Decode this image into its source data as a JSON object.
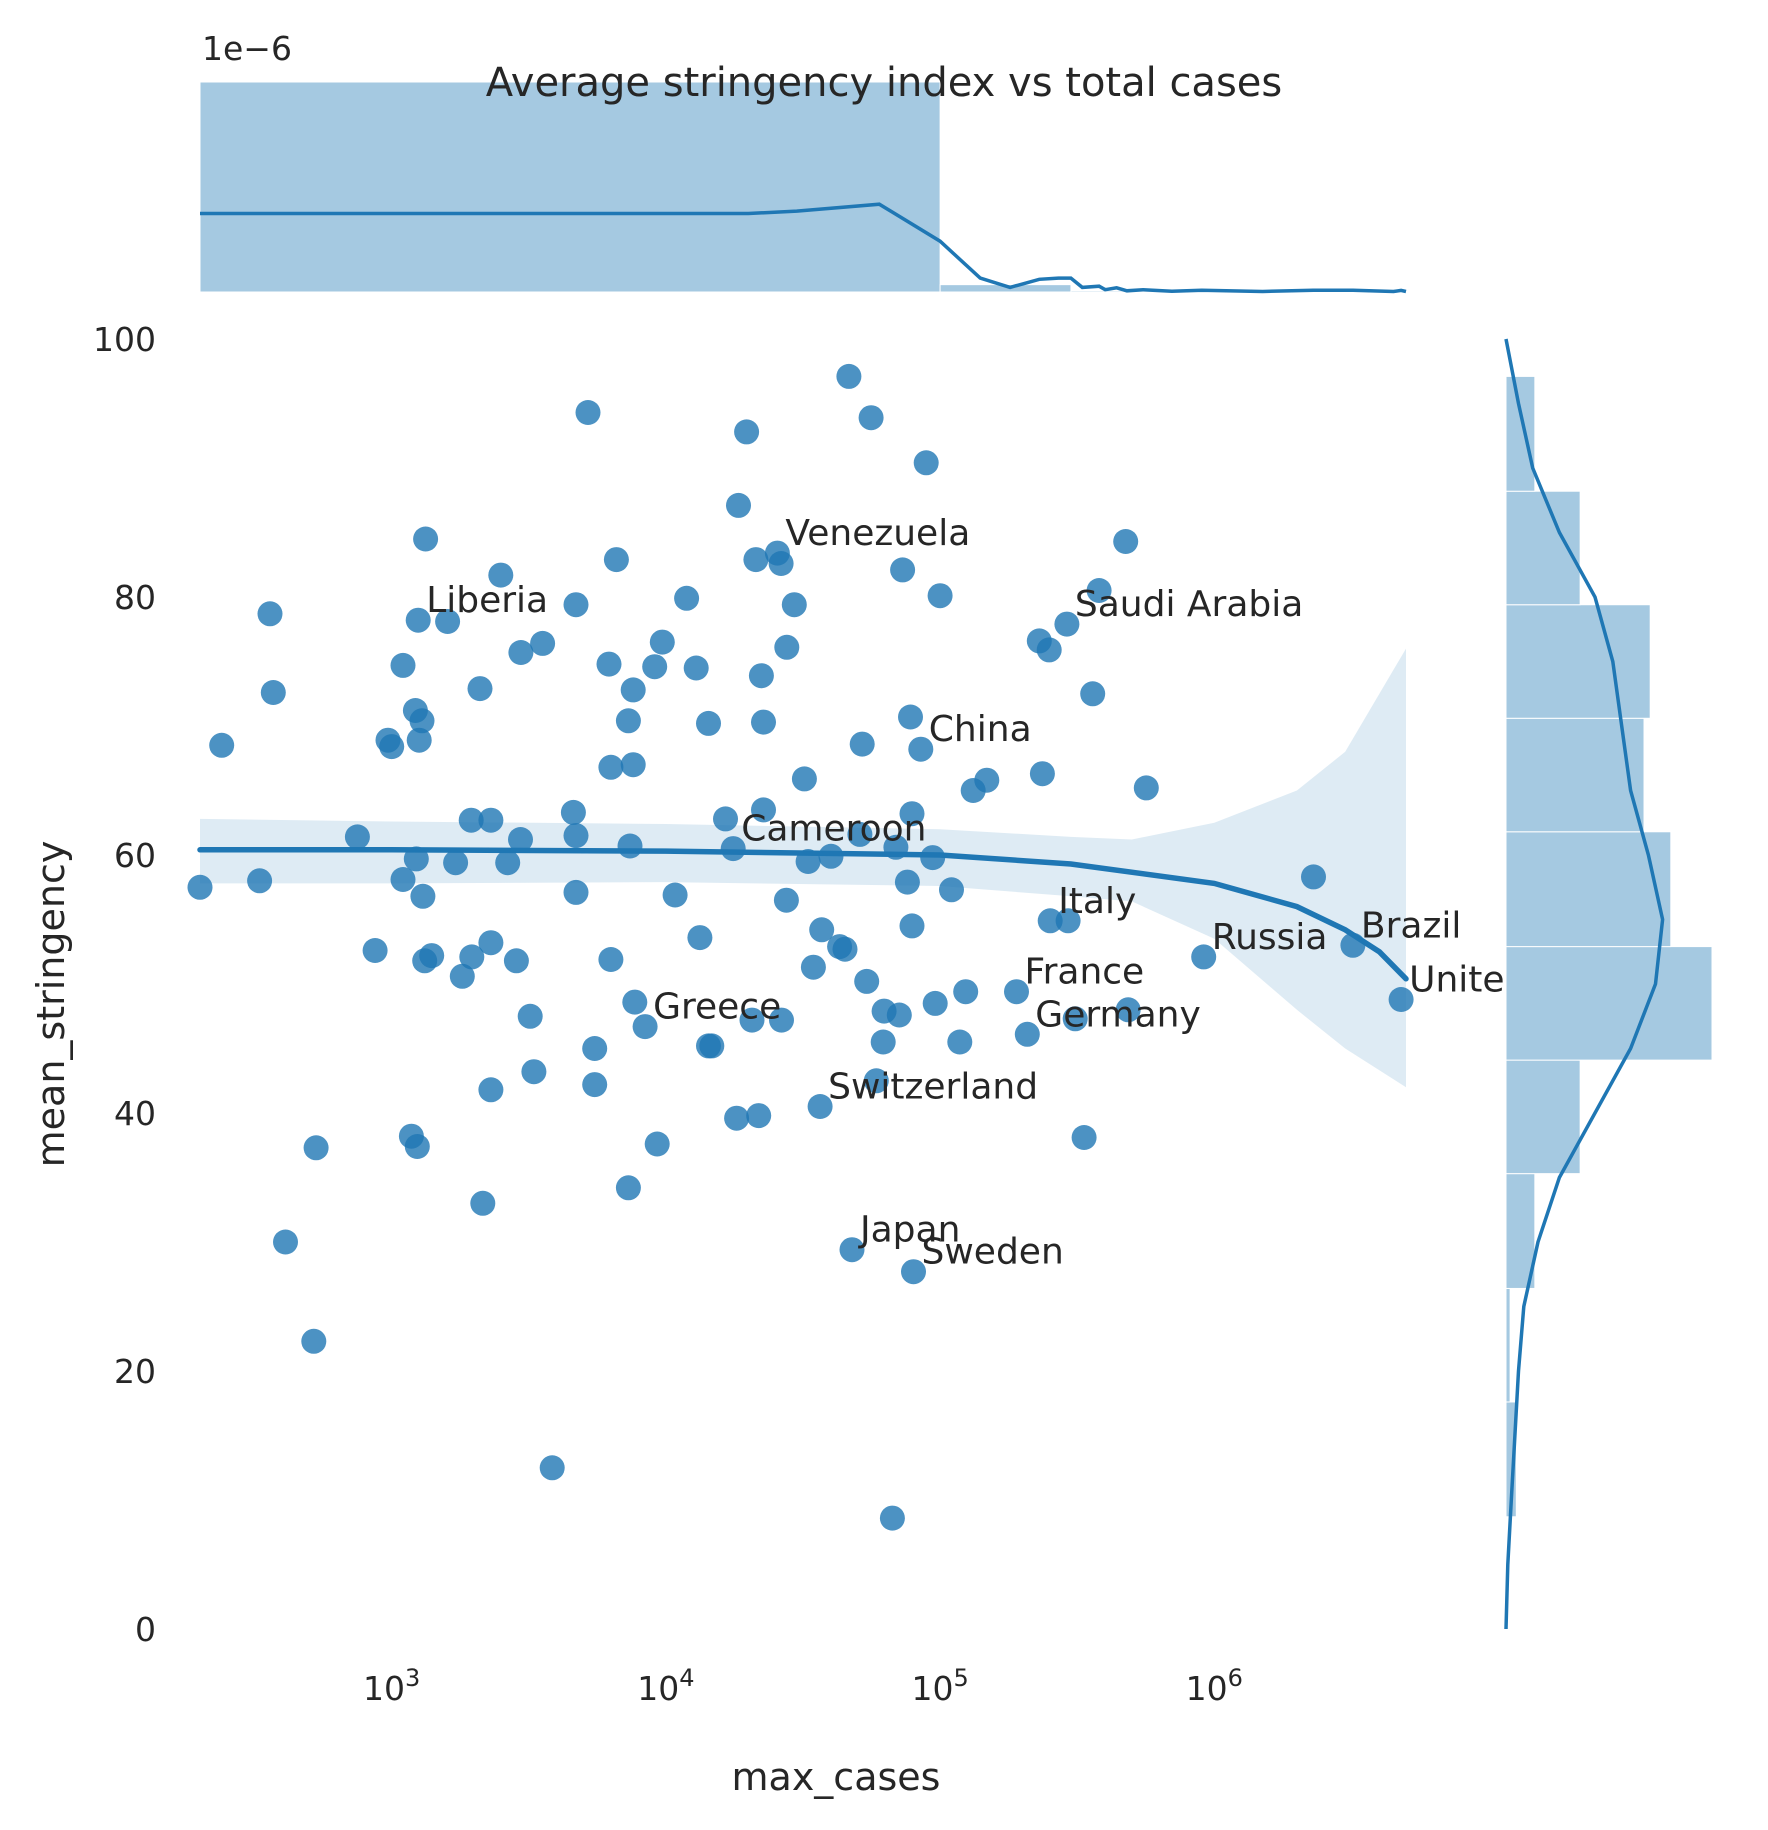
{
  "chart_data": {
    "type": "scatter",
    "title": "Average stringency index vs total cases",
    "xlabel": "max_cases",
    "ylabel": "mean_stringency",
    "xscale": "log",
    "xlim": [
      200,
      5000000
    ],
    "ylim": [
      0,
      100
    ],
    "x_ticks": [
      {
        "value": 1000,
        "base": "10",
        "exp": "3"
      },
      {
        "value": 10000,
        "base": "10",
        "exp": "4"
      },
      {
        "value": 100000,
        "base": "10",
        "exp": "5"
      },
      {
        "value": 1000000,
        "base": "10",
        "exp": "6"
      }
    ],
    "y_ticks": [
      "0",
      "20",
      "40",
      "60",
      "80",
      "100"
    ],
    "top_marginal_offset_label": "1e−6",
    "color": "#1f77b4",
    "points": [
      [
        200,
        57.5
      ],
      [
        240,
        68.5
      ],
      [
        370,
        72.6
      ],
      [
        330,
        58
      ],
      [
        360,
        78.7
      ],
      [
        410,
        30
      ],
      [
        520,
        22.3
      ],
      [
        530,
        37.3
      ],
      [
        750,
        61.4
      ],
      [
        870,
        52.6
      ],
      [
        970,
        68.9
      ],
      [
        1000,
        68.4
      ],
      [
        1100,
        74.7
      ],
      [
        1100,
        58.1
      ],
      [
        1180,
        38.2
      ],
      [
        1220,
        71.2
      ],
      [
        1230,
        59.7
      ],
      [
        1240,
        37.4
      ],
      [
        1250,
        78.2
      ],
      [
        1260,
        68.9
      ],
      [
        1290,
        70.4
      ],
      [
        1300,
        56.8
      ],
      [
        1320,
        51.8
      ],
      [
        1330,
        84.5
      ],
      [
        1400,
        52.2
      ],
      [
        1600,
        78.1
      ],
      [
        1710,
        59.4
      ],
      [
        1810,
        50.6
      ],
      [
        1950,
        62.7
      ],
      [
        1960,
        52.1
      ],
      [
        2100,
        72.9
      ],
      [
        2150,
        33
      ],
      [
        2300,
        62.7
      ],
      [
        2300,
        53.2
      ],
      [
        2300,
        41.8
      ],
      [
        2500,
        81.7
      ],
      [
        2650,
        59.4
      ],
      [
        2850,
        51.8
      ],
      [
        2950,
        61.2
      ],
      [
        2960,
        75.7
      ],
      [
        3200,
        47.5
      ],
      [
        3300,
        43.2
      ],
      [
        3550,
        76.4
      ],
      [
        3850,
        12.5
      ],
      [
        4600,
        63.3
      ],
      [
        4700,
        61.5
      ],
      [
        4700,
        57.1
      ],
      [
        4700,
        79.4
      ],
      [
        5200,
        94.3
      ],
      [
        5500,
        45
      ],
      [
        5500,
        42.2
      ],
      [
        6200,
        74.8
      ],
      [
        6300,
        66.8
      ],
      [
        6300,
        51.9
      ],
      [
        6600,
        82.9
      ],
      [
        7300,
        70.4
      ],
      [
        7300,
        34.2
      ],
      [
        7400,
        60.7
      ],
      [
        7600,
        72.8
      ],
      [
        7600,
        67
      ],
      [
        7700,
        48.6
      ],
      [
        8400,
        46.7
      ],
      [
        9100,
        74.6
      ],
      [
        9300,
        37.6
      ],
      [
        9700,
        76.5
      ],
      [
        10800,
        56.9
      ],
      [
        11900,
        79.9
      ],
      [
        12900,
        74.5
      ],
      [
        13300,
        53.6
      ],
      [
        14300,
        70.2
      ],
      [
        14300,
        45.2
      ],
      [
        14700,
        45.2
      ],
      [
        16500,
        62.8
      ],
      [
        17600,
        60.5
      ],
      [
        18100,
        39.6
      ],
      [
        18400,
        87.1
      ],
      [
        19700,
        92.8
      ],
      [
        20600,
        47.2
      ],
      [
        21300,
        82.9
      ],
      [
        21800,
        39.8
      ],
      [
        22300,
        73.9
      ],
      [
        22700,
        70.3
      ],
      [
        22700,
        63.5
      ],
      [
        25500,
        83.4
      ],
      [
        26300,
        82.6
      ],
      [
        26400,
        47.2
      ],
      [
        27500,
        56.5
      ],
      [
        27600,
        76.1
      ],
      [
        29400,
        79.4
      ],
      [
        32000,
        65.9
      ],
      [
        33000,
        59.5
      ],
      [
        34500,
        51.3
      ],
      [
        36500,
        40.5
      ],
      [
        37000,
        54.2
      ],
      [
        40000,
        59.9
      ],
      [
        43000,
        52.9
      ],
      [
        45000,
        52.7
      ],
      [
        46500,
        97.1
      ],
      [
        47700,
        29.4
      ],
      [
        51000,
        61.6
      ],
      [
        52000,
        68.6
      ],
      [
        54000,
        50.2
      ],
      [
        56000,
        93.9
      ],
      [
        58500,
        42.5
      ],
      [
        62000,
        45.5
      ],
      [
        62500,
        47.9
      ],
      [
        67000,
        8.6
      ],
      [
        69000,
        60.6
      ],
      [
        71000,
        47.6
      ],
      [
        73000,
        82.1
      ],
      [
        76000,
        57.9
      ],
      [
        78000,
        70.7
      ],
      [
        79000,
        63.2
      ],
      [
        79000,
        54.5
      ],
      [
        80000,
        27.7
      ],
      [
        85000,
        68.2
      ],
      [
        89000,
        90.4
      ],
      [
        94000,
        59.8
      ],
      [
        96000,
        48.5
      ],
      [
        100000,
        80.1
      ],
      [
        110000,
        57.3
      ],
      [
        118000,
        45.5
      ],
      [
        124000,
        49.4
      ],
      [
        132000,
        65
      ],
      [
        148000,
        65.8
      ],
      [
        190000,
        49.4
      ],
      [
        208000,
        46.1
      ],
      [
        230000,
        76.6
      ],
      [
        236000,
        66.3
      ],
      [
        250000,
        75.9
      ],
      [
        252000,
        54.9
      ],
      [
        290000,
        77.9
      ],
      [
        293000,
        54.9
      ],
      [
        311000,
        47.3
      ],
      [
        335000,
        38.1
      ],
      [
        360000,
        72.5
      ],
      [
        380000,
        80.5
      ],
      [
        475000,
        84.3
      ],
      [
        485000,
        48
      ],
      [
        565000,
        65.2
      ],
      [
        915000,
        52.1
      ],
      [
        2300000,
        58.3
      ],
      [
        3200000,
        53
      ],
      [
        4800000,
        48.8
      ]
    ],
    "annotations": [
      {
        "label": "Venezuela",
        "x": 25500,
        "y": 83.4
      },
      {
        "label": "Liberia",
        "x": 1250,
        "y": 78.2
      },
      {
        "label": "Saudi Arabia",
        "x": 290000,
        "y": 77.9
      },
      {
        "label": "China",
        "x": 85000,
        "y": 68.2
      },
      {
        "label": "Cameroon",
        "x": 17600,
        "y": 60.5
      },
      {
        "label": "Italy",
        "x": 252000,
        "y": 54.9
      },
      {
        "label": "Russia",
        "x": 915000,
        "y": 52.1
      },
      {
        "label": "Brazil",
        "x": 3200000,
        "y": 53
      },
      {
        "label": "Unite",
        "x": 4800000,
        "y": 48.8
      },
      {
        "label": "France",
        "x": 190000,
        "y": 49.4
      },
      {
        "label": "Germany",
        "x": 208000,
        "y": 46.1
      },
      {
        "label": "Greece",
        "x": 8400,
        "y": 46.7
      },
      {
        "label": "Switzerland",
        "x": 36500,
        "y": 40.5
      },
      {
        "label": "Japan",
        "x": 47700,
        "y": 29.4
      },
      {
        "label": "Sweden",
        "x": 80000,
        "y": 27.7
      }
    ],
    "regression_line": [
      [
        200,
        60.4
      ],
      [
        1000,
        60.4
      ],
      [
        10000,
        60.3
      ],
      [
        100000,
        60
      ],
      [
        300000,
        59.3
      ],
      [
        1000000,
        57.8
      ],
      [
        2000000,
        56
      ],
      [
        3000000,
        54.2
      ],
      [
        4000000,
        52.5
      ],
      [
        5000000,
        50.4
      ]
    ],
    "regression_ci": {
      "x": [
        200,
        1000,
        10000,
        100000,
        300000,
        500000,
        1000000,
        2000000,
        3000000,
        5000000
      ],
      "upper": [
        62.8,
        62.6,
        62.4,
        62,
        61.4,
        61.2,
        62.5,
        65,
        68,
        76
      ],
      "lower": [
        57.8,
        57.8,
        57.9,
        57.6,
        56.8,
        56.4,
        53.5,
        48,
        45,
        42
      ]
    },
    "top_marginal": {
      "bins": [
        {
          "x0": 200,
          "x1": 100000,
          "h": 1
        },
        {
          "x0": 100000,
          "x1": 300000,
          "h": 0.035
        },
        {
          "x0": 300000,
          "x1": 5000000,
          "h": 0.006
        }
      ],
      "kde": [
        [
          200,
          0.34
        ],
        [
          20000,
          0.34
        ],
        [
          30000,
          0.35
        ],
        [
          60000,
          0.38
        ],
        [
          100000,
          0.22
        ],
        [
          140000,
          0.06
        ],
        [
          180000,
          0.02
        ],
        [
          230000,
          0.055
        ],
        [
          270000,
          0.06
        ],
        [
          300000,
          0.06
        ],
        [
          330000,
          0.02
        ],
        [
          380000,
          0.025
        ],
        [
          400000,
          0.01
        ],
        [
          440000,
          0.018
        ],
        [
          480000,
          0.005
        ],
        [
          550000,
          0.01
        ],
        [
          700000,
          0.003
        ],
        [
          900000,
          0.008
        ],
        [
          1500000,
          0.002
        ],
        [
          2300000,
          0.008
        ],
        [
          3200000,
          0.008
        ],
        [
          4500000,
          0.002
        ],
        [
          4800000,
          0.007
        ],
        [
          5000000,
          0.002
        ]
      ]
    },
    "right_marginal": {
      "bins": [
        {
          "y0": 8.7,
          "y1": 17.6,
          "h": 0.05
        },
        {
          "y0": 17.6,
          "y1": 26.4,
          "h": 0.02
        },
        {
          "y0": 26.4,
          "y1": 35.3,
          "h": 0.14
        },
        {
          "y0": 35.3,
          "y1": 44.1,
          "h": 0.36
        },
        {
          "y0": 44.1,
          "y1": 52.9,
          "h": 1.0
        },
        {
          "y0": 52.9,
          "y1": 61.8,
          "h": 0.8
        },
        {
          "y0": 61.8,
          "y1": 70.6,
          "h": 0.67
        },
        {
          "y0": 70.6,
          "y1": 79.4,
          "h": 0.7
        },
        {
          "y0": 79.4,
          "y1": 88.2,
          "h": 0.36
        },
        {
          "y0": 88.2,
          "y1": 97.1,
          "h": 0.14
        }
      ],
      "kde": [
        [
          0,
          0
        ],
        [
          5,
          0.01
        ],
        [
          10,
          0.03
        ],
        [
          15,
          0.05
        ],
        [
          20,
          0.07
        ],
        [
          25,
          0.1
        ],
        [
          30,
          0.18
        ],
        [
          35,
          0.3
        ],
        [
          40,
          0.5
        ],
        [
          45,
          0.7
        ],
        [
          50,
          0.84
        ],
        [
          55,
          0.88
        ],
        [
          60,
          0.8
        ],
        [
          65,
          0.7
        ],
        [
          70,
          0.65
        ],
        [
          75,
          0.6
        ],
        [
          80,
          0.5
        ],
        [
          85,
          0.3
        ],
        [
          90,
          0.15
        ],
        [
          95,
          0.07
        ],
        [
          100,
          0.0
        ]
      ]
    }
  }
}
